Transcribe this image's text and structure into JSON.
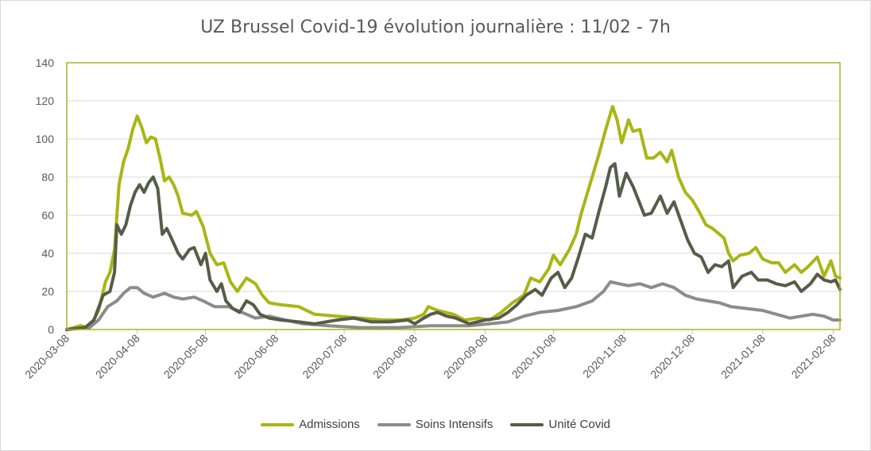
{
  "chart_data": {
    "type": "line",
    "title": "UZ Brussel Covid-19 évolution journalière : 11/02 - 7h",
    "xlabel": "",
    "ylabel": "",
    "ylim": [
      0,
      140
    ],
    "yticks": [
      "0",
      "20",
      "40",
      "60",
      "80",
      "100",
      "120",
      "140"
    ],
    "xlim": [
      "2020-03-08",
      "2021-02-11"
    ],
    "xtick_labels": [
      "2020-03-08",
      "2020-04-08",
      "2020-05-08",
      "2020-06-08",
      "2020-07-08",
      "2020-08-08",
      "2020-09-08",
      "2020-10-08",
      "2020-11-08",
      "2020-12-08",
      "2021-01-08",
      "2021-02-08"
    ],
    "grid": true,
    "legend_position": "bottom",
    "series": [
      {
        "name": "Admissions",
        "color": "#a9b614",
        "points": [
          [
            "2020-03-08",
            0
          ],
          [
            "2020-03-14",
            2
          ],
          [
            "2020-03-18",
            1
          ],
          [
            "2020-03-22",
            10
          ],
          [
            "2020-03-25",
            25
          ],
          [
            "2020-03-27",
            30
          ],
          [
            "2020-03-29",
            42
          ],
          [
            "2020-03-31",
            76
          ],
          [
            "2020-04-02",
            88
          ],
          [
            "2020-04-04",
            95
          ],
          [
            "2020-04-06",
            105
          ],
          [
            "2020-04-08",
            112
          ],
          [
            "2020-04-10",
            106
          ],
          [
            "2020-04-12",
            98
          ],
          [
            "2020-04-14",
            101
          ],
          [
            "2020-04-16",
            100
          ],
          [
            "2020-04-18",
            90
          ],
          [
            "2020-04-20",
            78
          ],
          [
            "2020-04-22",
            80
          ],
          [
            "2020-04-24",
            76
          ],
          [
            "2020-04-26",
            70
          ],
          [
            "2020-04-28",
            61
          ],
          [
            "2020-05-02",
            60
          ],
          [
            "2020-05-04",
            62
          ],
          [
            "2020-05-07",
            54
          ],
          [
            "2020-05-10",
            40
          ],
          [
            "2020-05-13",
            34
          ],
          [
            "2020-05-16",
            35
          ],
          [
            "2020-05-19",
            25
          ],
          [
            "2020-05-22",
            20
          ],
          [
            "2020-05-26",
            27
          ],
          [
            "2020-05-30",
            24
          ],
          [
            "2020-06-02",
            18
          ],
          [
            "2020-06-05",
            14
          ],
          [
            "2020-06-10",
            13
          ],
          [
            "2020-06-18",
            12
          ],
          [
            "2020-06-25",
            8
          ],
          [
            "2020-07-05",
            7
          ],
          [
            "2020-07-15",
            6
          ],
          [
            "2020-07-25",
            5
          ],
          [
            "2020-08-02",
            5
          ],
          [
            "2020-08-08",
            6
          ],
          [
            "2020-08-12",
            8
          ],
          [
            "2020-08-14",
            12
          ],
          [
            "2020-08-18",
            10
          ],
          [
            "2020-08-25",
            8
          ],
          [
            "2020-08-30",
            5
          ],
          [
            "2020-09-05",
            6
          ],
          [
            "2020-09-10",
            5
          ],
          [
            "2020-09-15",
            9
          ],
          [
            "2020-09-20",
            14
          ],
          [
            "2020-09-25",
            18
          ],
          [
            "2020-09-28",
            27
          ],
          [
            "2020-10-02",
            25
          ],
          [
            "2020-10-06",
            32
          ],
          [
            "2020-10-08",
            39
          ],
          [
            "2020-10-11",
            34
          ],
          [
            "2020-10-15",
            42
          ],
          [
            "2020-10-18",
            50
          ],
          [
            "2020-10-20",
            60
          ],
          [
            "2020-10-22",
            68
          ],
          [
            "2020-10-25",
            80
          ],
          [
            "2020-10-28",
            92
          ],
          [
            "2020-10-31",
            105
          ],
          [
            "2020-11-03",
            117
          ],
          [
            "2020-11-05",
            110
          ],
          [
            "2020-11-07",
            98
          ],
          [
            "2020-11-10",
            110
          ],
          [
            "2020-11-12",
            104
          ],
          [
            "2020-11-15",
            105
          ],
          [
            "2020-11-18",
            90
          ],
          [
            "2020-11-21",
            90
          ],
          [
            "2020-11-24",
            93
          ],
          [
            "2020-11-27",
            88
          ],
          [
            "2020-11-29",
            94
          ],
          [
            "2020-12-02",
            80
          ],
          [
            "2020-12-05",
            72
          ],
          [
            "2020-12-08",
            68
          ],
          [
            "2020-12-11",
            62
          ],
          [
            "2020-12-14",
            55
          ],
          [
            "2020-12-17",
            53
          ],
          [
            "2020-12-20",
            50
          ],
          [
            "2020-12-22",
            48
          ],
          [
            "2020-12-24",
            40
          ],
          [
            "2020-12-26",
            36
          ],
          [
            "2020-12-29",
            39
          ],
          [
            "2021-01-02",
            40
          ],
          [
            "2021-01-05",
            43
          ],
          [
            "2021-01-08",
            37
          ],
          [
            "2021-01-12",
            35
          ],
          [
            "2021-01-15",
            35
          ],
          [
            "2021-01-18",
            30
          ],
          [
            "2021-01-22",
            34
          ],
          [
            "2021-01-25",
            30
          ],
          [
            "2021-01-28",
            33
          ],
          [
            "2021-02-01",
            38
          ],
          [
            "2021-02-04",
            28
          ],
          [
            "2021-02-07",
            36
          ],
          [
            "2021-02-09",
            28
          ],
          [
            "2021-02-11",
            27
          ]
        ]
      },
      {
        "name": "Soins Intensifs",
        "color": "#8c8c8c",
        "points": [
          [
            "2020-03-08",
            0
          ],
          [
            "2020-03-18",
            1
          ],
          [
            "2020-03-22",
            5
          ],
          [
            "2020-03-26",
            12
          ],
          [
            "2020-03-30",
            15
          ],
          [
            "2020-04-02",
            19
          ],
          [
            "2020-04-05",
            22
          ],
          [
            "2020-04-08",
            22
          ],
          [
            "2020-04-11",
            19
          ],
          [
            "2020-04-15",
            17
          ],
          [
            "2020-04-20",
            19
          ],
          [
            "2020-04-24",
            17
          ],
          [
            "2020-04-28",
            16
          ],
          [
            "2020-05-03",
            17
          ],
          [
            "2020-05-07",
            15
          ],
          [
            "2020-05-12",
            12
          ],
          [
            "2020-05-18",
            12
          ],
          [
            "2020-05-24",
            9
          ],
          [
            "2020-05-30",
            6
          ],
          [
            "2020-06-05",
            7
          ],
          [
            "2020-06-12",
            5
          ],
          [
            "2020-06-20",
            3
          ],
          [
            "2020-07-01",
            2
          ],
          [
            "2020-07-15",
            1
          ],
          [
            "2020-08-01",
            1
          ],
          [
            "2020-08-15",
            2
          ],
          [
            "2020-09-01",
            2
          ],
          [
            "2020-09-10",
            3
          ],
          [
            "2020-09-18",
            4
          ],
          [
            "2020-09-25",
            7
          ],
          [
            "2020-10-02",
            9
          ],
          [
            "2020-10-10",
            10
          ],
          [
            "2020-10-18",
            12
          ],
          [
            "2020-10-25",
            15
          ],
          [
            "2020-10-30",
            20
          ],
          [
            "2020-11-02",
            25
          ],
          [
            "2020-11-06",
            24
          ],
          [
            "2020-11-10",
            23
          ],
          [
            "2020-11-15",
            24
          ],
          [
            "2020-11-20",
            22
          ],
          [
            "2020-11-25",
            24
          ],
          [
            "2020-11-30",
            22
          ],
          [
            "2020-12-05",
            18
          ],
          [
            "2020-12-10",
            16
          ],
          [
            "2020-12-15",
            15
          ],
          [
            "2020-12-20",
            14
          ],
          [
            "2020-12-25",
            12
          ],
          [
            "2021-01-01",
            11
          ],
          [
            "2021-01-08",
            10
          ],
          [
            "2021-01-14",
            8
          ],
          [
            "2021-01-20",
            6
          ],
          [
            "2021-01-25",
            7
          ],
          [
            "2021-01-30",
            8
          ],
          [
            "2021-02-04",
            7
          ],
          [
            "2021-02-08",
            5
          ],
          [
            "2021-02-11",
            5
          ]
        ]
      },
      {
        "name": "Unité Covid",
        "color": "#575c49",
        "points": [
          [
            "2020-03-08",
            0
          ],
          [
            "2020-03-16",
            1
          ],
          [
            "2020-03-20",
            5
          ],
          [
            "2020-03-24",
            18
          ],
          [
            "2020-03-27",
            20
          ],
          [
            "2020-03-29",
            30
          ],
          [
            "2020-03-30",
            55
          ],
          [
            "2020-04-01",
            50
          ],
          [
            "2020-04-03",
            55
          ],
          [
            "2020-04-05",
            65
          ],
          [
            "2020-04-07",
            72
          ],
          [
            "2020-04-09",
            76
          ],
          [
            "2020-04-11",
            72
          ],
          [
            "2020-04-13",
            77
          ],
          [
            "2020-04-15",
            80
          ],
          [
            "2020-04-17",
            74
          ],
          [
            "2020-04-19",
            50
          ],
          [
            "2020-04-21",
            53
          ],
          [
            "2020-04-23",
            48
          ],
          [
            "2020-04-26",
            40
          ],
          [
            "2020-04-28",
            37
          ],
          [
            "2020-05-01",
            42
          ],
          [
            "2020-05-03",
            43
          ],
          [
            "2020-05-06",
            34
          ],
          [
            "2020-05-08",
            40
          ],
          [
            "2020-05-10",
            26
          ],
          [
            "2020-05-13",
            20
          ],
          [
            "2020-05-15",
            24
          ],
          [
            "2020-05-17",
            15
          ],
          [
            "2020-05-20",
            11
          ],
          [
            "2020-05-23",
            9
          ],
          [
            "2020-05-26",
            15
          ],
          [
            "2020-05-29",
            13
          ],
          [
            "2020-06-01",
            8
          ],
          [
            "2020-06-05",
            6
          ],
          [
            "2020-06-10",
            5
          ],
          [
            "2020-06-18",
            4
          ],
          [
            "2020-06-25",
            3
          ],
          [
            "2020-07-05",
            5
          ],
          [
            "2020-07-12",
            6
          ],
          [
            "2020-07-20",
            4
          ],
          [
            "2020-07-28",
            4
          ],
          [
            "2020-08-05",
            5
          ],
          [
            "2020-08-08",
            3
          ],
          [
            "2020-08-12",
            6
          ],
          [
            "2020-08-15",
            8
          ],
          [
            "2020-08-18",
            9
          ],
          [
            "2020-08-22",
            7
          ],
          [
            "2020-08-26",
            6
          ],
          [
            "2020-09-01",
            3
          ],
          [
            "2020-09-08",
            5
          ],
          [
            "2020-09-14",
            6
          ],
          [
            "2020-09-18",
            9
          ],
          [
            "2020-09-22",
            13
          ],
          [
            "2020-09-26",
            18
          ],
          [
            "2020-09-30",
            21
          ],
          [
            "2020-10-03",
            18
          ],
          [
            "2020-10-07",
            27
          ],
          [
            "2020-10-10",
            30
          ],
          [
            "2020-10-13",
            22
          ],
          [
            "2020-10-16",
            27
          ],
          [
            "2020-10-19",
            38
          ],
          [
            "2020-10-22",
            50
          ],
          [
            "2020-10-25",
            48
          ],
          [
            "2020-10-28",
            62
          ],
          [
            "2020-10-31",
            75
          ],
          [
            "2020-11-02",
            85
          ],
          [
            "2020-11-04",
            87
          ],
          [
            "2020-11-06",
            70
          ],
          [
            "2020-11-09",
            82
          ],
          [
            "2020-11-12",
            75
          ],
          [
            "2020-11-15",
            66
          ],
          [
            "2020-11-17",
            60
          ],
          [
            "2020-11-20",
            61
          ],
          [
            "2020-11-24",
            70
          ],
          [
            "2020-11-27",
            61
          ],
          [
            "2020-11-30",
            67
          ],
          [
            "2020-12-03",
            57
          ],
          [
            "2020-12-06",
            47
          ],
          [
            "2020-12-09",
            40
          ],
          [
            "2020-12-12",
            38
          ],
          [
            "2020-12-15",
            30
          ],
          [
            "2020-12-18",
            34
          ],
          [
            "2020-12-21",
            33
          ],
          [
            "2020-12-24",
            36
          ],
          [
            "2020-12-26",
            22
          ],
          [
            "2020-12-30",
            28
          ],
          [
            "2021-01-03",
            30
          ],
          [
            "2021-01-06",
            26
          ],
          [
            "2021-01-10",
            26
          ],
          [
            "2021-01-14",
            24
          ],
          [
            "2021-01-18",
            23
          ],
          [
            "2021-01-22",
            25
          ],
          [
            "2021-01-25",
            20
          ],
          [
            "2021-01-29",
            24
          ],
          [
            "2021-02-01",
            29
          ],
          [
            "2021-02-04",
            26
          ],
          [
            "2021-02-07",
            25
          ],
          [
            "2021-02-09",
            26
          ],
          [
            "2021-02-11",
            21
          ]
        ]
      }
    ]
  }
}
